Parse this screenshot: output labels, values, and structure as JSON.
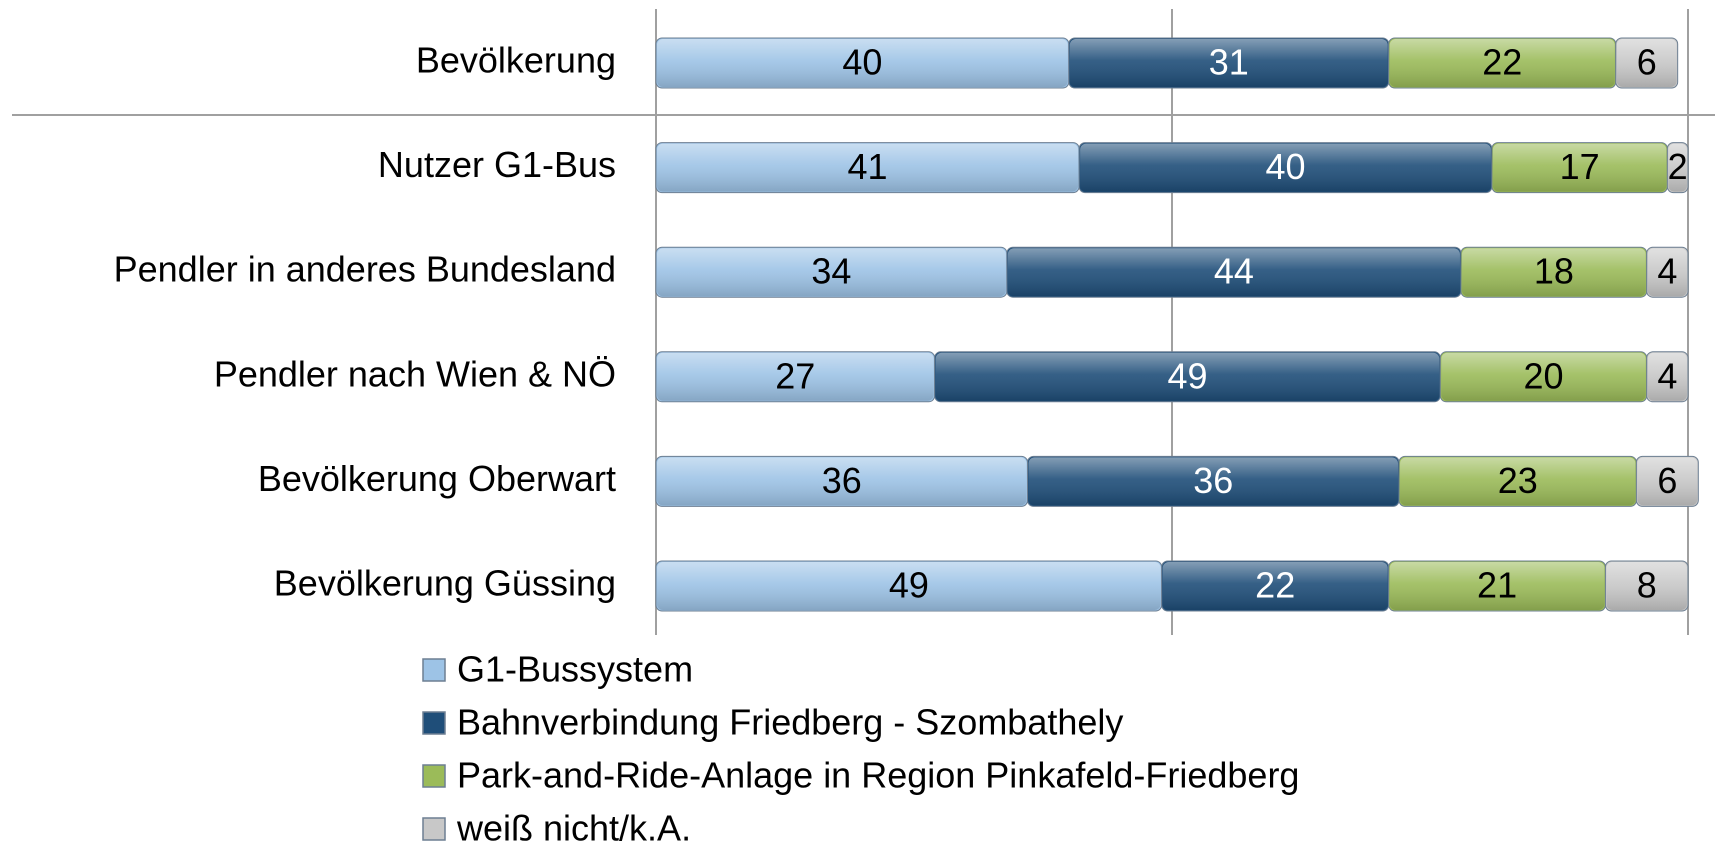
{
  "chart_data": {
    "type": "stacked_barh",
    "categories": [
      "Bevölkerung",
      "Nutzer G1-Bus",
      "Pendler in anderes Bundesland",
      "Pendler nach Wien & NÖ",
      "Bevölkerung Oberwart",
      "Bevölkerung Güssing"
    ],
    "series": [
      {
        "name": "G1-Bussystem",
        "color": "#9dc3e6",
        "label_color": "#000000",
        "values": [
          40,
          41,
          34,
          27,
          36,
          49
        ]
      },
      {
        "name": "Bahnverbindung Friedberg - Szombathely",
        "color": "#1f4e79",
        "label_color": "#ffffff",
        "values": [
          31,
          40,
          44,
          49,
          36,
          22
        ]
      },
      {
        "name": "Park-and-Ride-Anlage in Region Pinkafeld-Friedberg",
        "color": "#9bbb59",
        "label_color": "#000000",
        "values": [
          22,
          17,
          18,
          20,
          23,
          21
        ]
      },
      {
        "name": "weiß nicht/k.A.",
        "color": "#c8c8c8",
        "label_color": "#000000",
        "values": [
          6,
          2,
          4,
          4,
          6,
          8
        ]
      }
    ],
    "xlim": [
      0,
      100
    ],
    "xticks": [
      0,
      50,
      100
    ],
    "grid": true,
    "legend": "bottom"
  }
}
